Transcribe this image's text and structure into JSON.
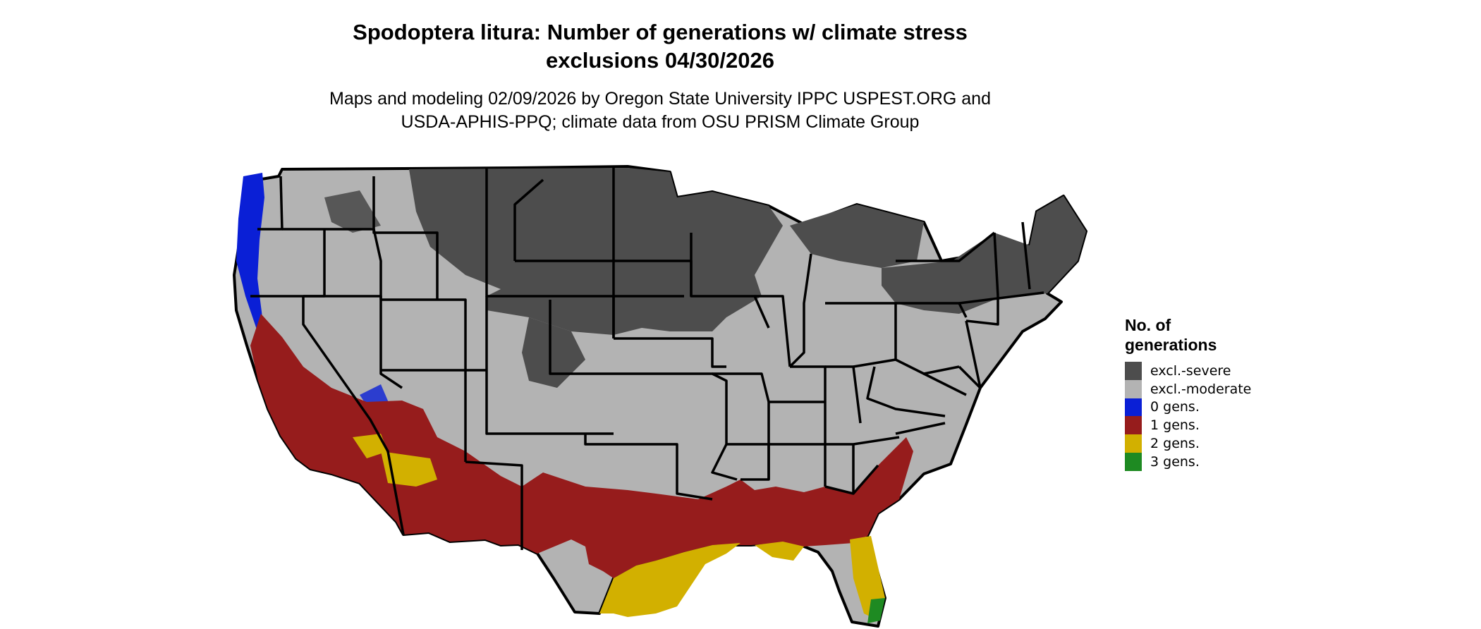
{
  "title_line1": "Spodoptera litura: Number of generations w/ climate stress",
  "title_line2": "exclusions 04/30/2026",
  "subtitle_line1": "Maps and modeling 02/09/2026 by Oregon State University IPPC USPEST.ORG and",
  "subtitle_line2": "USDA-APHIS-PPQ; climate data from OSU PRISM Climate Group",
  "legend": {
    "title_line1": "No. of",
    "title_line2": "generations",
    "items": [
      {
        "label": "excl.-severe",
        "color": "#4d4d4d"
      },
      {
        "label": "excl.-moderate",
        "color": "#b3b3b3"
      },
      {
        "label": "0 gens.",
        "color": "#0a1fd6"
      },
      {
        "label": "1 gens.",
        "color": "#961c1c"
      },
      {
        "label": "2 gens.",
        "color": "#d2b000"
      },
      {
        "label": "3 gens.",
        "color": "#1e8a22"
      }
    ]
  }
}
